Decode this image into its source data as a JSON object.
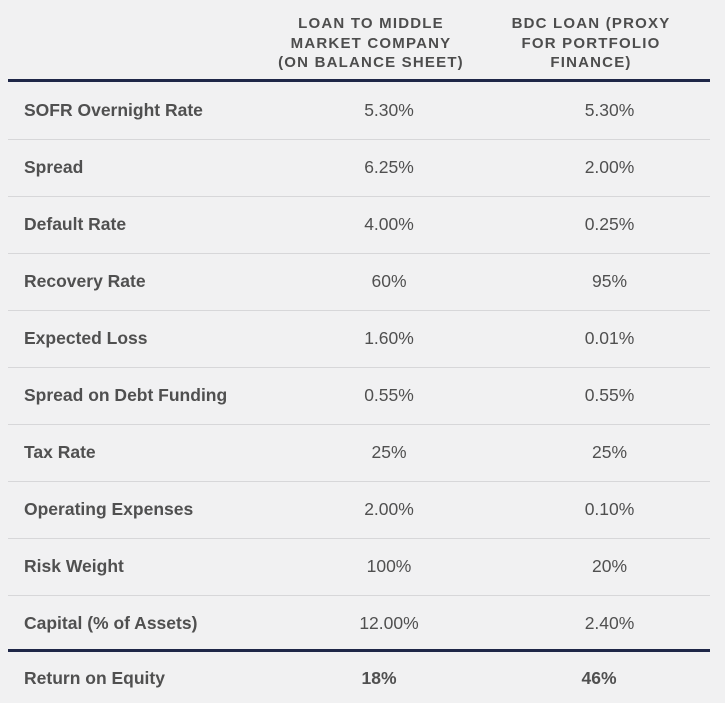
{
  "header": {
    "col1": [
      "LOAN TO MIDDLE",
      "MARKET COMPANY",
      "(ON BALANCE SHEET)"
    ],
    "col2": [
      "BDC LOAN (PROXY",
      "FOR PORTFOLIO",
      "FINANCE)"
    ]
  },
  "rows": [
    {
      "label": "SOFR Overnight Rate",
      "v1": "5.30%",
      "v2": "5.30%"
    },
    {
      "label": "Spread",
      "v1": "6.25%",
      "v2": "2.00%"
    },
    {
      "label": "Default Rate",
      "v1": "4.00%",
      "v2": "0.25%"
    },
    {
      "label": "Recovery Rate",
      "v1": "60%",
      "v2": "95%"
    },
    {
      "label": "Expected Loss",
      "v1": "1.60%",
      "v2": "0.01%"
    },
    {
      "label": "Spread on Debt Funding",
      "v1": "0.55%",
      "v2": "0.55%"
    },
    {
      "label": "Tax Rate",
      "v1": "25%",
      "v2": "25%"
    },
    {
      "label": "Operating Expenses",
      "v1": "2.00%",
      "v2": "0.10%"
    },
    {
      "label": "Risk Weight",
      "v1": "100%",
      "v2": "20%"
    },
    {
      "label": "Capital (% of Assets)",
      "v1": "12.00%",
      "v2": "2.40%"
    }
  ],
  "footer": {
    "label": "Return on Equity",
    "v1": "18%",
    "v2": "46%"
  },
  "colors": {
    "rule": "#1f2748",
    "background": "#f1f1f2",
    "text": "#505050",
    "separator": "#d7d7d9"
  }
}
